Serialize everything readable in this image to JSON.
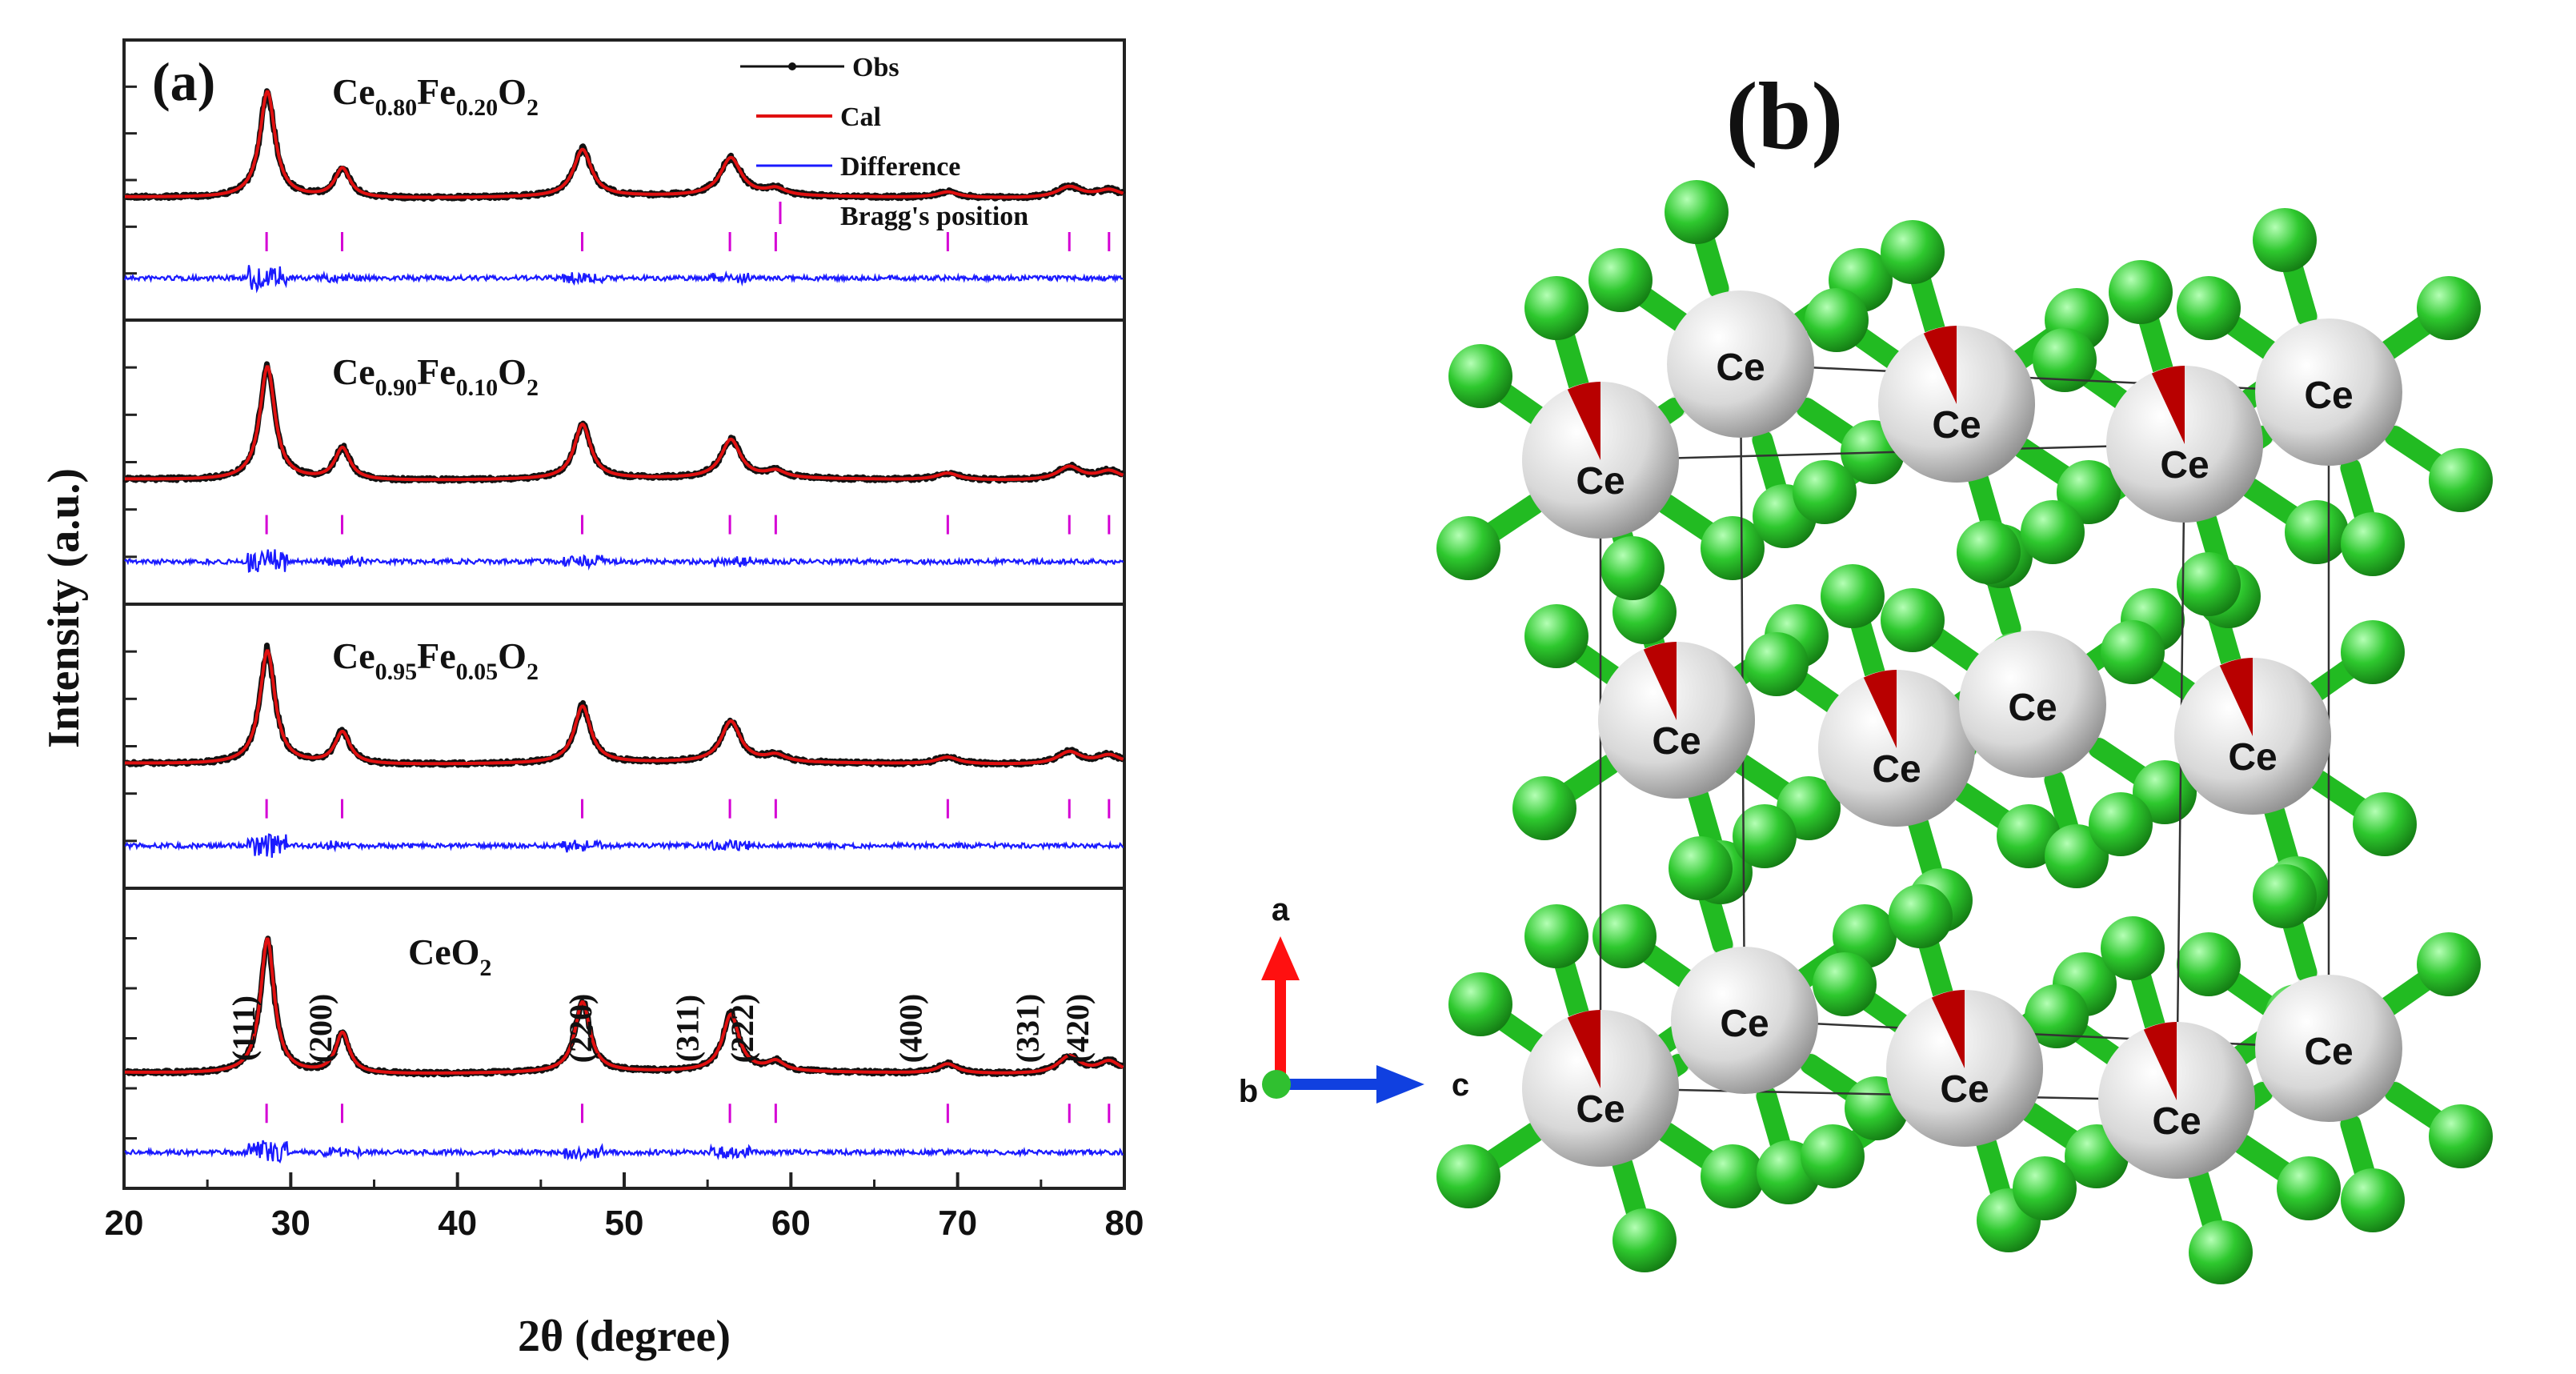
{
  "panel_a": {
    "label": "(a)",
    "ylabel": "Intensity (a.u.)",
    "xlabel": "2θ (degree)",
    "legend": {
      "obs": "Obs",
      "cal": "Cal",
      "diff": "Difference",
      "bragg": "Bragg's position"
    },
    "colors": {
      "obs": "#111111",
      "cal": "#e01010",
      "diff": "#1a1aff",
      "bragg": "#d400d4"
    }
  },
  "chart_data": {
    "type": "line",
    "xlim": [
      20,
      80
    ],
    "x_ticks": [
      "20",
      "30",
      "40",
      "50",
      "60",
      "70",
      "80"
    ],
    "bragg_positions": [
      28.55,
      33.08,
      47.48,
      56.34,
      59.09,
      69.41,
      76.7,
      79.08
    ],
    "panels": [
      {
        "sample": {
          "base": "Ce",
          "sub1": "0.80",
          "mid": "Fe",
          "sub2": "0.20",
          "end": "O",
          "sub3": "2"
        },
        "peaks": [
          {
            "pos": 28.6,
            "h": 0.95,
            "w": 0.55
          },
          {
            "pos": 33.1,
            "h": 0.26,
            "w": 0.55
          },
          {
            "pos": 47.5,
            "h": 0.42,
            "w": 0.65
          },
          {
            "pos": 56.4,
            "h": 0.34,
            "w": 0.75
          },
          {
            "pos": 59.1,
            "h": 0.06,
            "w": 0.7
          },
          {
            "pos": 69.4,
            "h": 0.05,
            "w": 0.8
          },
          {
            "pos": 76.7,
            "h": 0.1,
            "w": 0.9
          },
          {
            "pos": 79.1,
            "h": 0.07,
            "w": 0.9
          }
        ]
      },
      {
        "sample": {
          "base": "Ce",
          "sub1": "0.90",
          "mid": "Fe",
          "sub2": "0.10",
          "end": "O",
          "sub3": "2"
        },
        "peaks": [
          {
            "pos": 28.6,
            "h": 1.0,
            "w": 0.55
          },
          {
            "pos": 33.1,
            "h": 0.28,
            "w": 0.55
          },
          {
            "pos": 47.5,
            "h": 0.48,
            "w": 0.6
          },
          {
            "pos": 56.4,
            "h": 0.34,
            "w": 0.7
          },
          {
            "pos": 59.1,
            "h": 0.06,
            "w": 0.7
          },
          {
            "pos": 69.4,
            "h": 0.06,
            "w": 0.8
          },
          {
            "pos": 76.7,
            "h": 0.12,
            "w": 0.85
          },
          {
            "pos": 79.1,
            "h": 0.08,
            "w": 0.85
          }
        ]
      },
      {
        "sample": {
          "base": "Ce",
          "sub1": "0.95",
          "mid": "Fe",
          "sub2": "0.05",
          "end": "O",
          "sub3": "2"
        },
        "peaks": [
          {
            "pos": 28.6,
            "h": 1.0,
            "w": 0.55
          },
          {
            "pos": 33.1,
            "h": 0.28,
            "w": 0.55
          },
          {
            "pos": 47.5,
            "h": 0.5,
            "w": 0.6
          },
          {
            "pos": 56.4,
            "h": 0.36,
            "w": 0.7
          },
          {
            "pos": 59.1,
            "h": 0.06,
            "w": 0.7
          },
          {
            "pos": 69.4,
            "h": 0.06,
            "w": 0.8
          },
          {
            "pos": 76.7,
            "h": 0.11,
            "w": 0.85
          },
          {
            "pos": 79.1,
            "h": 0.08,
            "w": 0.85
          }
        ]
      },
      {
        "sample": {
          "base": "CeO",
          "sub1": "2",
          "mid": "",
          "sub2": "",
          "end": "",
          "sub3": ""
        },
        "peaks": [
          {
            "pos": 28.6,
            "h": 1.0,
            "w": 0.5
          },
          {
            "pos": 33.1,
            "h": 0.3,
            "w": 0.5
          },
          {
            "pos": 47.5,
            "h": 0.52,
            "w": 0.55
          },
          {
            "pos": 56.4,
            "h": 0.42,
            "w": 0.6
          },
          {
            "pos": 59.1,
            "h": 0.07,
            "w": 0.6
          },
          {
            "pos": 69.4,
            "h": 0.07,
            "w": 0.7
          },
          {
            "pos": 76.7,
            "h": 0.13,
            "w": 0.8
          },
          {
            "pos": 79.1,
            "h": 0.09,
            "w": 0.8
          }
        ],
        "hkl": [
          {
            "x": 28.5,
            "label": "(111)"
          },
          {
            "x": 33.1,
            "label": "(200)"
          },
          {
            "x": 48.7,
            "label": "(220)"
          },
          {
            "x": 55.1,
            "label": "(311)"
          },
          {
            "x": 58.4,
            "label": "(222)"
          },
          {
            "x": 68.5,
            "label": "(400)"
          },
          {
            "x": 75.5,
            "label": "(331)"
          },
          {
            "x": 78.5,
            "label": "(420)"
          }
        ]
      }
    ]
  },
  "panel_b": {
    "label": "(b)",
    "atom_label": "Ce",
    "axes": {
      "a": "a",
      "b": "b",
      "c": "c"
    },
    "colors": {
      "ce": "#d8d8d8",
      "o": "#2ec82e",
      "bond_o": "#22bb22",
      "bond_ce": "#e6e6e6",
      "wedge": "#b80000",
      "axis_a": "#ff1010",
      "axis_c": "#1040e0",
      "axis_b": "#30c030"
    }
  }
}
